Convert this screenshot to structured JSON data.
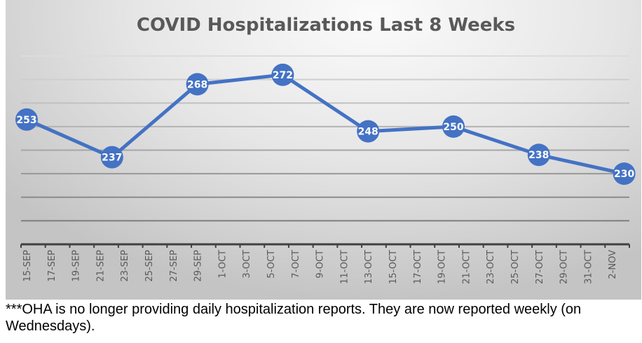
{
  "chart_data": {
    "type": "line",
    "title": "COVID Hospitalizations Last 8 Weeks",
    "xlabel": "",
    "ylabel": "",
    "ylim": [
      200,
      280
    ],
    "y_gridlines": [
      210,
      220,
      230,
      240,
      250,
      260,
      270,
      280
    ],
    "grid": true,
    "x_tick_labels": [
      "15-SEP",
      "17-SEP",
      "19-SEP",
      "21-SEP",
      "23-SEP",
      "25-SEP",
      "27-SEP",
      "29-SEP",
      "1-OCT",
      "3-OCT",
      "5-OCT",
      "7-OCT",
      "9-OCT",
      "11-OCT",
      "13-OCT",
      "15-OCT",
      "17-OCT",
      "19-OCT",
      "21-OCT",
      "23-OCT",
      "25-OCT",
      "27-OCT",
      "29-OCT",
      "31-OCT",
      "2-NOV"
    ],
    "series": [
      {
        "name": "Hospitalizations",
        "color": "#4472c4",
        "x": [
          "15-SEP",
          "22-SEP",
          "29-SEP",
          "6-OCT",
          "13-OCT",
          "20-OCT",
          "27-OCT",
          "3-NOV"
        ],
        "day_offsets": [
          0,
          7,
          14,
          21,
          28,
          35,
          42,
          49
        ],
        "values": [
          253,
          237,
          268,
          272,
          248,
          250,
          238,
          230
        ]
      }
    ]
  },
  "footnote": "***OHA is no longer providing daily hospitalization reports.  They are now reported weekly (on Wednesdays)."
}
